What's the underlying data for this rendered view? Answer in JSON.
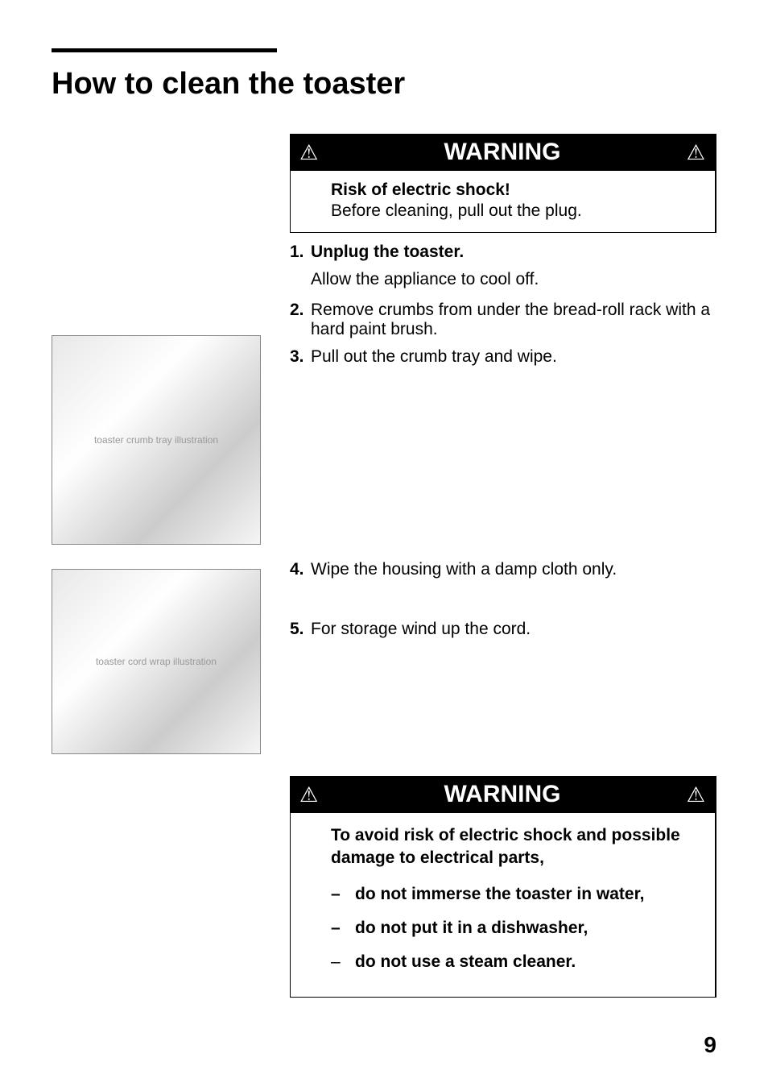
{
  "page": {
    "title": "How to clean the toaster",
    "number": "9"
  },
  "warning1": {
    "label": "WARNING",
    "risk_title": "Risk of electric shock!",
    "risk_text": "Before cleaning, pull out the plug."
  },
  "steps": {
    "s1": {
      "num": "1.",
      "bold": "Unplug the toaster.",
      "sub": "Allow the appliance to cool off."
    },
    "s2": {
      "num": "2.",
      "text": "Remove crumbs from under the bread-roll rack with a hard paint brush."
    },
    "s3": {
      "num": "3.",
      "text": "Pull out the crumb tray and wipe."
    },
    "s4": {
      "num": "4.",
      "text": "Wipe the housing with a damp cloth only."
    },
    "s5": {
      "num": "5.",
      "text": "For storage wind up the cord."
    }
  },
  "warning2": {
    "label": "WARNING",
    "lead": "To avoid risk of electric shock and possible damage to electrical parts,",
    "items": {
      "i1": {
        "dash": "–",
        "text": "do not immerse the toaster in water,"
      },
      "i2": {
        "dash": "–",
        "text": "do not put it in a dishwasher,"
      },
      "i3": {
        "dash": "–",
        "text": "do not use a steam cleaner."
      }
    }
  },
  "images": {
    "img1_alt": "toaster crumb tray illustration",
    "img2_alt": "toaster cord wrap illustration"
  },
  "icons": {
    "triangle": "⚠"
  },
  "colors": {
    "bg": "#ffffff",
    "text": "#000000",
    "bar_bg": "#000000",
    "bar_fg": "#ffffff"
  }
}
